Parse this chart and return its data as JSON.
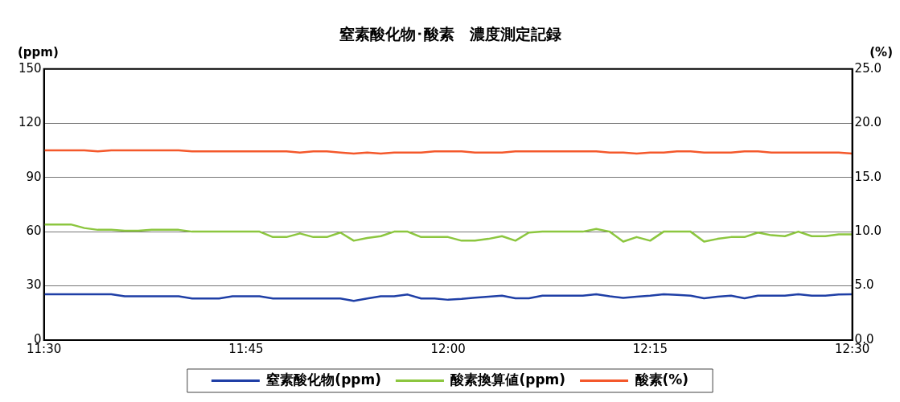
{
  "chart_data": {
    "type": "line",
    "title": "窒素酸化物･酸素　濃度測定記録",
    "ylabel": "(ppm)",
    "y2label": "(%)",
    "x": [
      11.5,
      11.5167,
      11.5333,
      11.55,
      11.5667,
      11.5833,
      11.6,
      11.6167,
      11.6333,
      11.65,
      11.6667,
      11.6833,
      11.7,
      11.7167,
      11.7333,
      11.75,
      11.7667,
      11.7833,
      11.8,
      11.8167,
      11.8333,
      11.85,
      11.8667,
      11.8833,
      11.9,
      11.9167,
      11.9333,
      11.95,
      11.9667,
      11.9833,
      12.0,
      12.0167,
      12.0333,
      12.05,
      12.0667,
      12.0833,
      12.1,
      12.1167,
      12.1333,
      12.15,
      12.1667,
      12.1833,
      12.2,
      12.2167,
      12.2333,
      12.25,
      12.2667,
      12.2833,
      12.3,
      12.3167,
      12.3333,
      12.35,
      12.3667,
      12.3833,
      12.4,
      12.4167,
      12.4333,
      12.45,
      12.4667,
      12.4833,
      12.5
    ],
    "series": [
      {
        "name": "窒素酸化物(ppm)",
        "color": "#1f3fa6",
        "values": [
          25.4,
          25.4,
          25.4,
          25.4,
          25.4,
          25.4,
          24.2,
          24.2,
          24.2,
          24.2,
          24.2,
          23,
          23,
          23,
          24.2,
          24.2,
          24.2,
          23,
          23,
          23,
          23,
          23,
          23,
          21.7,
          23,
          24.2,
          24.2,
          25.2,
          23,
          23,
          22.3,
          22.8,
          23.5,
          24,
          24.6,
          23.1,
          23.1,
          24.6,
          24.6,
          24.6,
          24.6,
          25.4,
          24.2,
          23.4,
          24,
          24.6,
          25.4,
          25,
          24.6,
          23.1,
          24,
          24.6,
          23.1,
          24.6,
          24.6,
          24.6,
          25.4,
          24.6,
          24.6,
          25.2,
          25.4
        ]
      },
      {
        "name": "酸素換算値(ppm)",
        "color": "#8cc63f",
        "values": [
          64,
          64,
          64,
          62,
          61,
          61,
          60.5,
          60.5,
          61,
          61,
          61,
          60,
          60,
          60,
          60,
          60,
          60,
          57,
          57,
          59,
          57,
          57,
          59.5,
          55,
          56.5,
          57.5,
          60,
          60,
          57,
          57,
          57,
          55,
          55,
          56,
          57.5,
          55,
          59.5,
          60,
          60,
          60,
          60,
          61.5,
          60,
          54.5,
          57,
          55,
          60,
          60,
          60,
          54.5,
          56,
          57,
          57,
          59.5,
          58,
          57.5,
          60,
          57.5,
          57.5,
          58.5,
          58.5
        ]
      },
      {
        "name": "酸素(%)",
        "color": "#f4582b",
        "axis": "y2",
        "values": [
          17.5,
          17.5,
          17.5,
          17.5,
          17.4,
          17.5,
          17.5,
          17.5,
          17.5,
          17.5,
          17.5,
          17.4,
          17.4,
          17.4,
          17.4,
          17.4,
          17.4,
          17.4,
          17.4,
          17.3,
          17.4,
          17.4,
          17.3,
          17.2,
          17.3,
          17.2,
          17.3,
          17.3,
          17.3,
          17.4,
          17.4,
          17.4,
          17.3,
          17.3,
          17.3,
          17.4,
          17.4,
          17.4,
          17.4,
          17.4,
          17.4,
          17.4,
          17.3,
          17.3,
          17.2,
          17.3,
          17.3,
          17.4,
          17.4,
          17.3,
          17.3,
          17.3,
          17.4,
          17.4,
          17.3,
          17.3,
          17.3,
          17.3,
          17.3,
          17.3,
          17.2
        ]
      }
    ],
    "xlim": [
      11.5,
      12.5
    ],
    "xticks": [
      {
        "value": 11.5,
        "label": "11:30"
      },
      {
        "value": 11.75,
        "label": "11:45"
      },
      {
        "value": 12,
        "label": "12:00"
      },
      {
        "value": 12.25,
        "label": "12:15"
      },
      {
        "value": 12.5,
        "label": "12:30"
      }
    ],
    "ylim": [
      0,
      150
    ],
    "yticks": [
      0,
      30,
      60,
      90,
      120,
      150
    ],
    "y2lim": [
      0,
      25
    ],
    "y2ticks": [
      {
        "value": 0,
        "label": "0.0"
      },
      {
        "value": 5,
        "label": "5.0"
      },
      {
        "value": 10,
        "label": "10.0"
      },
      {
        "value": 15,
        "label": "15.0"
      },
      {
        "value": 20,
        "label": "20.0"
      },
      {
        "value": 25,
        "label": "25.0"
      }
    ],
    "grid": "y",
    "legend": "bottom",
    "marker": "none",
    "line_style": "solid"
  }
}
